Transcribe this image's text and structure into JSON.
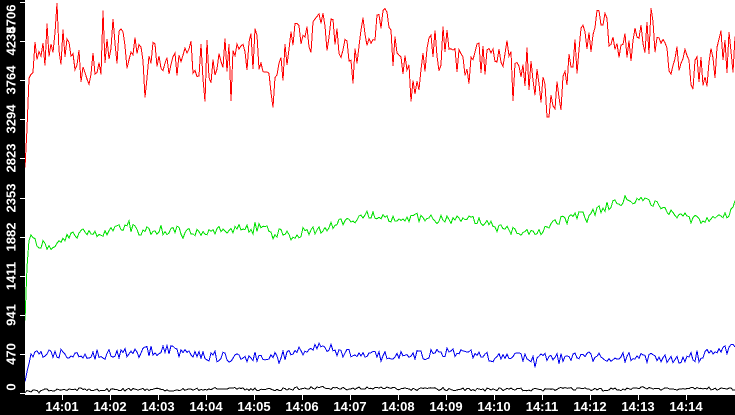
{
  "chart_data": {
    "type": "line",
    "title": "",
    "xlabel": "",
    "ylabel": "",
    "grid": false,
    "legend": false,
    "plot_background": "#ffffff",
    "axis_background": "#000000",
    "axis_text_color": "#ffffff",
    "y_axis": {
      "min": 0,
      "max": 4706,
      "ticks": [
        {
          "value": 0,
          "label": "0"
        },
        {
          "value": 470,
          "label": "470"
        },
        {
          "value": 941,
          "label": "941"
        },
        {
          "value": 1411,
          "label": "1411"
        },
        {
          "value": 1882,
          "label": "1882"
        },
        {
          "value": 2353,
          "label": "2353"
        },
        {
          "value": 2823,
          "label": "2823"
        },
        {
          "value": 3294,
          "label": "3294"
        },
        {
          "value": 3764,
          "label": "3764"
        },
        {
          "value": 4235,
          "label": "4235"
        },
        {
          "value": 4706,
          "label": "4706"
        }
      ]
    },
    "x_axis": {
      "start_minute": 0.23,
      "end_minute": 15.05,
      "ticks": [
        {
          "minute": 1,
          "label": "14:01"
        },
        {
          "minute": 2,
          "label": "14:02"
        },
        {
          "minute": 3,
          "label": "14:03"
        },
        {
          "minute": 4,
          "label": "14:04"
        },
        {
          "minute": 5,
          "label": "14:05"
        },
        {
          "minute": 6,
          "label": "14:06"
        },
        {
          "minute": 7,
          "label": "14:07"
        },
        {
          "minute": 8,
          "label": "14:08"
        },
        {
          "minute": 9,
          "label": "14:09"
        },
        {
          "minute": 10,
          "label": "14:10"
        },
        {
          "minute": 11,
          "label": "14:11"
        },
        {
          "minute": 12,
          "label": "14:12"
        },
        {
          "minute": 13,
          "label": "14:13"
        },
        {
          "minute": 14,
          "label": "14:14"
        }
      ]
    },
    "series": [
      {
        "name": "red",
        "color": "#ff0000",
        "noise_amplitude": 260,
        "spike_chance": 0.05,
        "spike_gain": 2.1,
        "min_clip": 0,
        "seed": 11,
        "trend": [
          [
            0.23,
            2850
          ],
          [
            0.35,
            4050
          ],
          [
            0.7,
            4150
          ],
          [
            1.0,
            4200
          ],
          [
            1.3,
            4000
          ],
          [
            1.6,
            3950
          ],
          [
            1.9,
            4100
          ],
          [
            2.2,
            4150
          ],
          [
            2.6,
            4050
          ],
          [
            3.0,
            3980
          ],
          [
            3.4,
            3950
          ],
          [
            3.8,
            4000
          ],
          [
            4.2,
            3980
          ],
          [
            4.6,
            4050
          ],
          [
            5.0,
            4150
          ],
          [
            5.45,
            3620
          ],
          [
            5.8,
            4200
          ],
          [
            6.2,
            4300
          ],
          [
            6.5,
            4380
          ],
          [
            6.9,
            4150
          ],
          [
            7.3,
            4200
          ],
          [
            7.65,
            4500
          ],
          [
            8.0,
            4050
          ],
          [
            8.35,
            3680
          ],
          [
            8.7,
            4100
          ],
          [
            9.1,
            4200
          ],
          [
            9.5,
            3950
          ],
          [
            9.9,
            4000
          ],
          [
            10.3,
            4050
          ],
          [
            10.7,
            3900
          ],
          [
            11.2,
            3380
          ],
          [
            11.6,
            3950
          ],
          [
            12.0,
            4300
          ],
          [
            12.25,
            4420
          ],
          [
            12.6,
            4200
          ],
          [
            13.0,
            4120
          ],
          [
            13.25,
            4350
          ],
          [
            13.6,
            4050
          ],
          [
            14.0,
            3950
          ],
          [
            14.35,
            3780
          ],
          [
            14.7,
            4100
          ],
          [
            15.05,
            4100
          ]
        ]
      },
      {
        "name": "green",
        "color": "#00e000",
        "noise_amplitude": 55,
        "spike_chance": 0.05,
        "spike_gain": 2.0,
        "min_clip": 0,
        "seed": 22,
        "trend": [
          [
            0.23,
            900
          ],
          [
            0.3,
            1890
          ],
          [
            0.5,
            1800
          ],
          [
            0.75,
            1760
          ],
          [
            0.95,
            1810
          ],
          [
            1.15,
            1880
          ],
          [
            1.45,
            1950
          ],
          [
            1.75,
            1930
          ],
          [
            2.05,
            1945
          ],
          [
            2.35,
            2000
          ],
          [
            2.65,
            1950
          ],
          [
            2.95,
            1940
          ],
          [
            3.25,
            1960
          ],
          [
            3.55,
            1950
          ],
          [
            3.85,
            1945
          ],
          [
            4.15,
            1960
          ],
          [
            4.45,
            1955
          ],
          [
            4.75,
            2020
          ],
          [
            5.05,
            2000
          ],
          [
            5.35,
            1950
          ],
          [
            5.65,
            1900
          ],
          [
            5.95,
            1890
          ],
          [
            6.25,
            1950
          ],
          [
            6.55,
            2000
          ],
          [
            6.85,
            2050
          ],
          [
            7.15,
            2110
          ],
          [
            7.45,
            2160
          ],
          [
            7.75,
            2120
          ],
          [
            8.05,
            2100
          ],
          [
            8.35,
            2120
          ],
          [
            8.65,
            2100
          ],
          [
            8.95,
            2080
          ],
          [
            9.25,
            2100
          ],
          [
            9.55,
            2080
          ],
          [
            9.85,
            2040
          ],
          [
            10.15,
            1975
          ],
          [
            10.45,
            1950
          ],
          [
            10.75,
            1945
          ],
          [
            11.05,
            1960
          ],
          [
            11.35,
            2060
          ],
          [
            11.65,
            2110
          ],
          [
            11.95,
            2150
          ],
          [
            12.25,
            2230
          ],
          [
            12.55,
            2290
          ],
          [
            12.8,
            2340
          ],
          [
            13.1,
            2300
          ],
          [
            13.4,
            2250
          ],
          [
            13.7,
            2150
          ],
          [
            14.0,
            2110
          ],
          [
            14.3,
            2080
          ],
          [
            14.6,
            2130
          ],
          [
            14.85,
            2100
          ],
          [
            15.05,
            2320
          ]
        ]
      },
      {
        "name": "blue",
        "color": "#0000ee",
        "noise_amplitude": 65,
        "spike_chance": 0.05,
        "spike_gain": 1.9,
        "min_clip": 0,
        "seed": 33,
        "trend": [
          [
            0.23,
            170
          ],
          [
            0.35,
            460
          ],
          [
            0.8,
            470
          ],
          [
            1.2,
            485
          ],
          [
            1.6,
            460
          ],
          [
            2.0,
            470
          ],
          [
            2.4,
            485
          ],
          [
            2.8,
            505
          ],
          [
            3.2,
            520
          ],
          [
            3.6,
            480
          ],
          [
            4.0,
            450
          ],
          [
            4.4,
            430
          ],
          [
            4.8,
            425
          ],
          [
            5.2,
            445
          ],
          [
            5.6,
            485
          ],
          [
            6.0,
            530
          ],
          [
            6.35,
            580
          ],
          [
            6.7,
            500
          ],
          [
            7.1,
            445
          ],
          [
            7.5,
            450
          ],
          [
            7.9,
            435
          ],
          [
            8.3,
            455
          ],
          [
            8.7,
            465
          ],
          [
            9.1,
            480
          ],
          [
            9.5,
            460
          ],
          [
            9.9,
            430
          ],
          [
            10.3,
            415
          ],
          [
            10.7,
            425
          ],
          [
            11.1,
            430
          ],
          [
            11.5,
            405
          ],
          [
            11.9,
            430
          ],
          [
            12.3,
            440
          ],
          [
            12.7,
            430
          ],
          [
            13.1,
            420
          ],
          [
            13.5,
            405
          ],
          [
            13.9,
            420
          ],
          [
            14.3,
            440
          ],
          [
            14.7,
            520
          ],
          [
            15.05,
            545
          ]
        ]
      },
      {
        "name": "black",
        "color": "#000000",
        "noise_amplitude": 18,
        "spike_chance": 0.04,
        "spike_gain": 1.8,
        "min_clip": 2,
        "seed": 44,
        "trend": [
          [
            0.23,
            10
          ],
          [
            0.6,
            35
          ],
          [
            1.0,
            40
          ],
          [
            1.4,
            45
          ],
          [
            1.8,
            35
          ],
          [
            2.2,
            40
          ],
          [
            2.6,
            40
          ],
          [
            3.0,
            35
          ],
          [
            3.4,
            40
          ],
          [
            3.8,
            45
          ],
          [
            4.3,
            55
          ],
          [
            4.7,
            50
          ],
          [
            5.1,
            40
          ],
          [
            5.5,
            45
          ],
          [
            6.0,
            55
          ],
          [
            6.4,
            65
          ],
          [
            6.8,
            50
          ],
          [
            7.2,
            55
          ],
          [
            7.6,
            60
          ],
          [
            8.0,
            50
          ],
          [
            8.4,
            45
          ],
          [
            8.8,
            50
          ],
          [
            9.2,
            45
          ],
          [
            9.6,
            40
          ],
          [
            10.0,
            40
          ],
          [
            10.4,
            45
          ],
          [
            10.8,
            40
          ],
          [
            11.2,
            40
          ],
          [
            11.5,
            55
          ],
          [
            11.9,
            45
          ],
          [
            12.3,
            40
          ],
          [
            12.7,
            45
          ],
          [
            13.1,
            60
          ],
          [
            13.5,
            45
          ],
          [
            13.9,
            50
          ],
          [
            14.3,
            60
          ],
          [
            14.7,
            45
          ],
          [
            15.05,
            40
          ]
        ]
      }
    ]
  }
}
